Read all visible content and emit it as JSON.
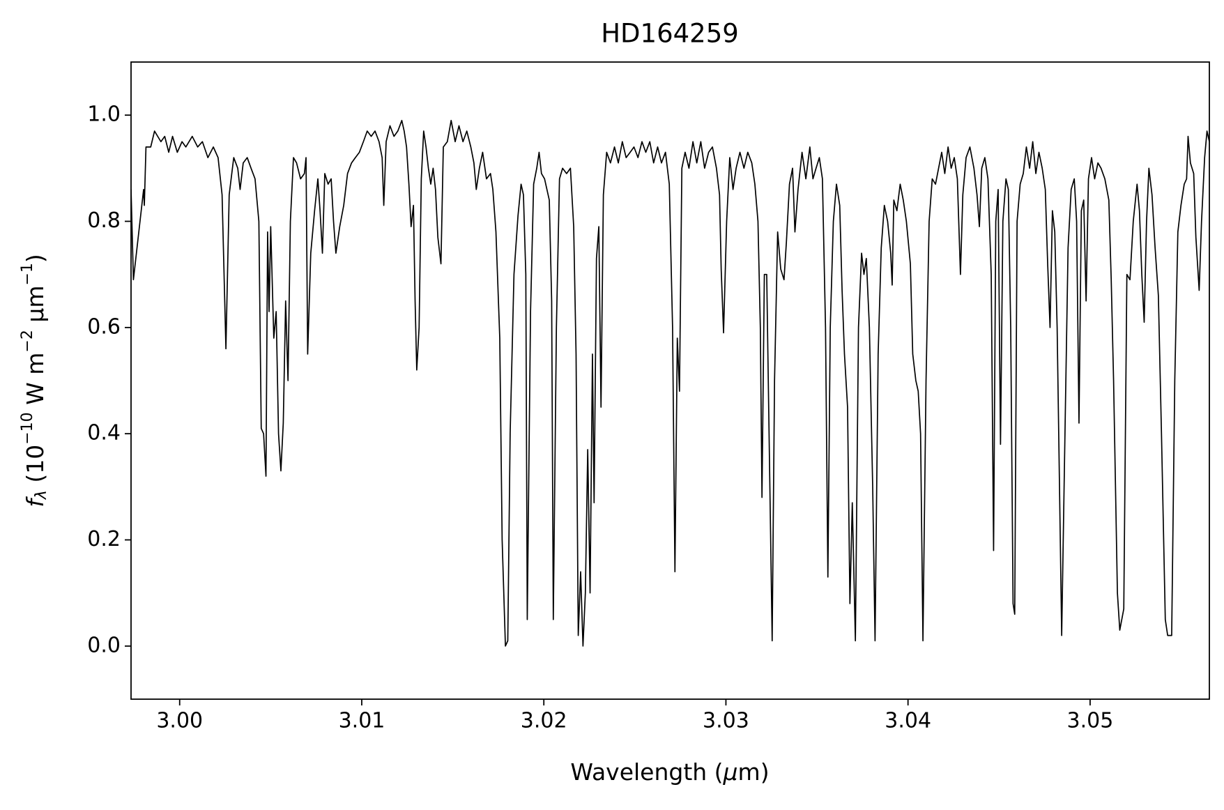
{
  "chart_data": {
    "type": "line",
    "title": "HD164259",
    "xlabel": [
      "Wavelength (",
      "μ",
      "m)"
    ],
    "ylabel": [
      "f",
      "λ",
      " (10",
      "−10",
      " W m",
      "−2",
      " μm",
      "−1",
      ")"
    ],
    "color": "#000000",
    "xlim": [
      2.99733,
      3.05655
    ],
    "ylim": [
      -0.1,
      1.1
    ],
    "xticks": [
      {
        "value": 3,
        "label": "3.00"
      },
      3.01,
      3.02,
      3.03,
      3.04,
      3.05
    ],
    "yticks": [
      {
        "value": 0,
        "label": "0.0"
      },
      0.2,
      0.4,
      0.6,
      0.8,
      {
        "value": 1,
        "label": "1.0"
      }
    ],
    "grid": false,
    "x": [
      2.99733,
      2.99746,
      2.99802,
      2.99806,
      2.99815,
      2.99841,
      2.99862,
      2.99897,
      2.99918,
      2.9994,
      2.99961,
      2.99987,
      3.00013,
      3.00034,
      3.00069,
      3.00099,
      3.00125,
      3.00155,
      3.00185,
      3.00211,
      3.00233,
      3.00254,
      3.00272,
      3.00297,
      3.00319,
      3.00332,
      3.00349,
      3.00371,
      3.00392,
      3.00414,
      3.00435,
      3.00448,
      3.00461,
      3.00474,
      3.00483,
      3.00491,
      3.005,
      3.00517,
      3.0053,
      3.00543,
      3.00556,
      3.00569,
      3.00582,
      3.00595,
      3.00608,
      3.00625,
      3.00642,
      3.00664,
      3.00685,
      3.00694,
      3.00703,
      3.0072,
      3.00741,
      3.00759,
      3.00771,
      3.00784,
      3.00797,
      3.00815,
      3.00832,
      3.00845,
      3.00858,
      3.00879,
      3.00901,
      3.00922,
      3.00944,
      3.00965,
      3.00987,
      3.01009,
      3.0103,
      3.01052,
      3.01073,
      3.01095,
      3.01112,
      3.01121,
      3.01134,
      3.01155,
      3.01177,
      3.01198,
      3.0122,
      3.01233,
      3.01246,
      3.01259,
      3.01271,
      3.01284,
      3.01293,
      3.01302,
      3.01315,
      3.01327,
      3.0134,
      3.01353,
      3.01366,
      3.01379,
      3.01392,
      3.01405,
      3.01418,
      3.01435,
      3.01448,
      3.0147,
      3.01491,
      3.01513,
      3.01534,
      3.01556,
      3.01577,
      3.01599,
      3.01616,
      3.01629,
      3.01646,
      3.01664,
      3.01685,
      3.01707,
      3.0172,
      3.01737,
      3.01758,
      3.01771,
      3.01789,
      3.01802,
      3.01815,
      3.01836,
      3.01858,
      3.01875,
      3.01888,
      3.01901,
      3.01909,
      3.01927,
      3.01944,
      3.01961,
      3.01974,
      3.01987,
      3.02004,
      3.0203,
      3.02043,
      3.02052,
      3.02069,
      3.02086,
      3.02103,
      3.02125,
      3.02146,
      3.02164,
      3.02177,
      3.02189,
      3.02202,
      3.02215,
      3.02228,
      3.02241,
      3.02254,
      3.02267,
      3.02276,
      3.02289,
      3.02302,
      3.02314,
      3.02327,
      3.02345,
      3.02366,
      3.02388,
      3.02409,
      3.02431,
      3.02452,
      3.02474,
      3.02495,
      3.02517,
      3.02539,
      3.0256,
      3.02582,
      3.02603,
      3.02625,
      3.02646,
      3.02668,
      3.02689,
      3.02707,
      3.0272,
      3.02733,
      3.02745,
      3.02758,
      3.02776,
      3.02797,
      3.02819,
      3.0284,
      3.02862,
      3.02883,
      3.02905,
      3.02926,
      3.02948,
      3.02965,
      3.02974,
      3.02987,
      3.03004,
      3.03021,
      3.03039,
      3.03056,
      3.03077,
      3.03099,
      3.0312,
      3.03142,
      3.03159,
      3.03176,
      3.03189,
      3.03198,
      3.03211,
      3.03224,
      3.03237,
      3.03254,
      3.03267,
      3.03284,
      3.03301,
      3.03319,
      3.03332,
      3.03349,
      3.03366,
      3.03379,
      3.03396,
      3.03418,
      3.03439,
      3.03461,
      3.03478,
      3.03495,
      3.03513,
      3.0353,
      3.03547,
      3.0356,
      3.03573,
      3.0359,
      3.03607,
      3.03625,
      3.03638,
      3.03651,
      3.03668,
      3.03681,
      3.03694,
      3.03711,
      3.03728,
      3.03745,
      3.03758,
      3.03771,
      3.03788,
      3.03806,
      3.03819,
      3.03836,
      3.03853,
      3.0387,
      3.03888,
      3.03905,
      3.03913,
      3.03922,
      3.03939,
      3.03957,
      3.03974,
      3.03991,
      3.04013,
      3.04026,
      3.04043,
      3.04056,
      3.04069,
      3.04082,
      3.04099,
      3.04116,
      3.04133,
      3.04151,
      3.04168,
      3.04185,
      3.04202,
      3.0422,
      3.04237,
      3.04254,
      3.04271,
      3.04288,
      3.04301,
      3.04319,
      3.0434,
      3.04362,
      3.04379,
      3.04392,
      3.04405,
      3.04422,
      3.04439,
      3.04457,
      3.0447,
      3.04482,
      3.04495,
      3.04508,
      3.04521,
      3.04538,
      3.04551,
      3.04564,
      3.04577,
      3.04586,
      3.04599,
      3.04616,
      3.04633,
      3.0465,
      3.04668,
      3.04685,
      3.04702,
      3.04719,
      3.04737,
      3.04754,
      3.04767,
      3.0478,
      3.04793,
      3.04806,
      3.04819,
      3.04832,
      3.04844,
      3.04862,
      3.04879,
      3.04896,
      3.04913,
      3.04926,
      3.04939,
      3.04952,
      3.04965,
      3.04978,
      3.04991,
      3.05008,
      3.05025,
      3.05043,
      3.0506,
      3.05081,
      3.05103,
      3.05116,
      3.05129,
      3.0515,
      3.05163,
      3.05185,
      3.05202,
      3.05219,
      3.05237,
      3.05258,
      3.05271,
      3.05284,
      3.05297,
      3.0531,
      3.05323,
      3.0534,
      3.05357,
      3.05375,
      3.05392,
      3.05413,
      3.05426,
      3.05448,
      3.05465,
      3.05482,
      3.05499,
      3.05517,
      3.0553,
      3.05538,
      3.05551,
      3.05569,
      3.05581,
      3.05599,
      3.05612,
      3.05629,
      3.05642,
      3.05655
    ],
    "values": [
      0.86,
      0.69,
      0.86,
      0.83,
      0.94,
      0.94,
      0.97,
      0.95,
      0.96,
      0.93,
      0.96,
      0.93,
      0.95,
      0.94,
      0.96,
      0.94,
      0.95,
      0.92,
      0.94,
      0.92,
      0.85,
      0.56,
      0.85,
      0.92,
      0.9,
      0.86,
      0.91,
      0.92,
      0.9,
      0.88,
      0.8,
      0.41,
      0.4,
      0.32,
      0.78,
      0.63,
      0.79,
      0.58,
      0.63,
      0.4,
      0.33,
      0.42,
      0.65,
      0.5,
      0.8,
      0.92,
      0.91,
      0.88,
      0.89,
      0.92,
      0.55,
      0.74,
      0.82,
      0.88,
      0.82,
      0.74,
      0.89,
      0.87,
      0.88,
      0.8,
      0.74,
      0.79,
      0.83,
      0.89,
      0.91,
      0.92,
      0.93,
      0.95,
      0.97,
      0.96,
      0.97,
      0.95,
      0.92,
      0.83,
      0.95,
      0.98,
      0.96,
      0.97,
      0.99,
      0.97,
      0.94,
      0.87,
      0.79,
      0.83,
      0.65,
      0.52,
      0.6,
      0.88,
      0.97,
      0.94,
      0.9,
      0.87,
      0.9,
      0.86,
      0.77,
      0.72,
      0.94,
      0.95,
      0.99,
      0.95,
      0.98,
      0.95,
      0.97,
      0.94,
      0.91,
      0.86,
      0.9,
      0.93,
      0.88,
      0.89,
      0.86,
      0.78,
      0.58,
      0.2,
      0.0,
      0.01,
      0.4,
      0.7,
      0.81,
      0.87,
      0.85,
      0.7,
      0.05,
      0.63,
      0.87,
      0.9,
      0.93,
      0.89,
      0.88,
      0.84,
      0.65,
      0.05,
      0.6,
      0.88,
      0.9,
      0.89,
      0.9,
      0.79,
      0.55,
      0.02,
      0.14,
      0.0,
      0.1,
      0.37,
      0.1,
      0.55,
      0.27,
      0.73,
      0.79,
      0.45,
      0.85,
      0.93,
      0.91,
      0.94,
      0.91,
      0.95,
      0.92,
      0.93,
      0.94,
      0.92,
      0.95,
      0.93,
      0.95,
      0.91,
      0.94,
      0.91,
      0.93,
      0.87,
      0.6,
      0.14,
      0.58,
      0.48,
      0.9,
      0.93,
      0.9,
      0.95,
      0.91,
      0.95,
      0.9,
      0.93,
      0.94,
      0.9,
      0.85,
      0.71,
      0.59,
      0.8,
      0.92,
      0.86,
      0.9,
      0.93,
      0.9,
      0.93,
      0.91,
      0.87,
      0.8,
      0.6,
      0.28,
      0.7,
      0.7,
      0.4,
      0.01,
      0.5,
      0.78,
      0.71,
      0.69,
      0.76,
      0.87,
      0.9,
      0.78,
      0.86,
      0.93,
      0.88,
      0.94,
      0.88,
      0.9,
      0.92,
      0.88,
      0.6,
      0.13,
      0.6,
      0.8,
      0.87,
      0.83,
      0.67,
      0.55,
      0.45,
      0.08,
      0.27,
      0.01,
      0.6,
      0.74,
      0.7,
      0.73,
      0.6,
      0.3,
      0.01,
      0.55,
      0.75,
      0.83,
      0.8,
      0.74,
      0.68,
      0.84,
      0.82,
      0.87,
      0.84,
      0.8,
      0.72,
      0.55,
      0.5,
      0.48,
      0.4,
      0.01,
      0.5,
      0.8,
      0.88,
      0.87,
      0.9,
      0.93,
      0.89,
      0.94,
      0.9,
      0.92,
      0.88,
      0.7,
      0.85,
      0.92,
      0.94,
      0.9,
      0.85,
      0.79,
      0.9,
      0.92,
      0.88,
      0.7,
      0.18,
      0.8,
      0.86,
      0.38,
      0.8,
      0.88,
      0.86,
      0.6,
      0.08,
      0.06,
      0.8,
      0.87,
      0.89,
      0.94,
      0.9,
      0.95,
      0.89,
      0.93,
      0.9,
      0.86,
      0.72,
      0.6,
      0.82,
      0.78,
      0.6,
      0.3,
      0.02,
      0.4,
      0.75,
      0.86,
      0.88,
      0.8,
      0.42,
      0.82,
      0.84,
      0.65,
      0.88,
      0.92,
      0.88,
      0.91,
      0.9,
      0.88,
      0.84,
      0.69,
      0.5,
      0.1,
      0.03,
      0.07,
      0.7,
      0.69,
      0.8,
      0.87,
      0.82,
      0.7,
      0.61,
      0.8,
      0.9,
      0.85,
      0.75,
      0.66,
      0.4,
      0.05,
      0.02,
      0.02,
      0.5,
      0.78,
      0.83,
      0.87,
      0.88,
      0.96,
      0.91,
      0.89,
      0.77,
      0.67,
      0.8,
      0.92,
      0.97,
      0.95
    ]
  }
}
